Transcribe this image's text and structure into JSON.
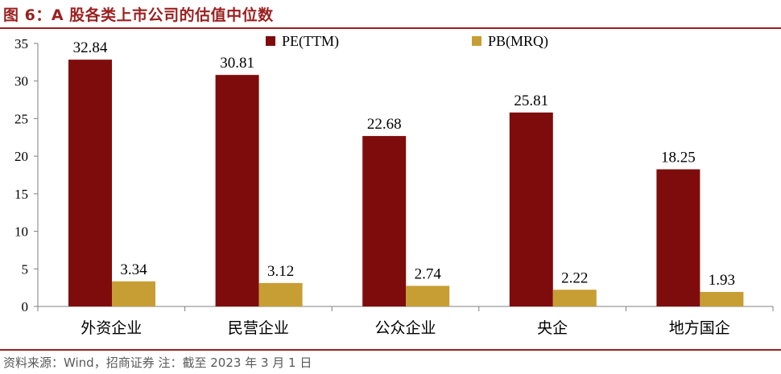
{
  "figure": {
    "title": "图 6：A 股各类上市公司的估值中位数",
    "source": "资料来源：Wind，招商证券    注：截至 2023 年 3 月 1 日"
  },
  "colors": {
    "accent": "#9b1f1f",
    "pe": "#7f0c0c",
    "pb": "#c79e33",
    "axis": "#808080"
  },
  "chart_data": {
    "type": "bar",
    "categories": [
      "外资企业",
      "民营企业",
      "公众企业",
      "央企",
      "地方国企"
    ],
    "series": [
      {
        "name": "PE(TTM)",
        "values": [
          32.84,
          30.81,
          22.68,
          25.81,
          18.25
        ]
      },
      {
        "name": "PB(MRQ)",
        "values": [
          3.34,
          3.12,
          2.74,
          2.22,
          1.93
        ]
      }
    ],
    "value_labels": [
      [
        "32.84",
        "30.81",
        "22.68",
        "25.81",
        "18.25"
      ],
      [
        "3.34",
        "3.12",
        "2.74",
        "2.22",
        "1.93"
      ]
    ],
    "y_ticks": [
      "0",
      "5",
      "10",
      "15",
      "20",
      "25",
      "30",
      "35"
    ],
    "ylim": [
      0,
      35
    ],
    "grid": false,
    "legend": "top"
  }
}
